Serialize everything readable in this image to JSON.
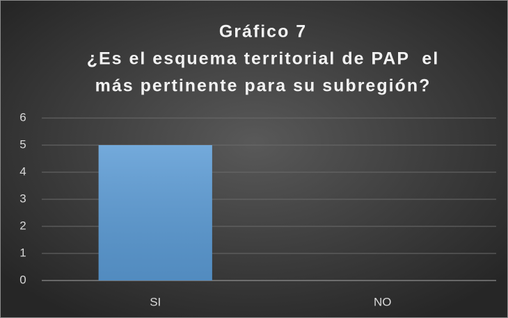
{
  "chart_data": {
    "type": "bar",
    "title": [
      "Gráfico 7",
      "¿Es el esquema territorial de PAP  el",
      "más pertinente para su subregión?"
    ],
    "categories": [
      "SI",
      "NO"
    ],
    "values": [
      5,
      0
    ],
    "color": "#5b9bd5",
    "ylim": [
      0,
      6
    ],
    "yticks": [
      0,
      1,
      2,
      3,
      4,
      5,
      6
    ],
    "grid": true
  }
}
